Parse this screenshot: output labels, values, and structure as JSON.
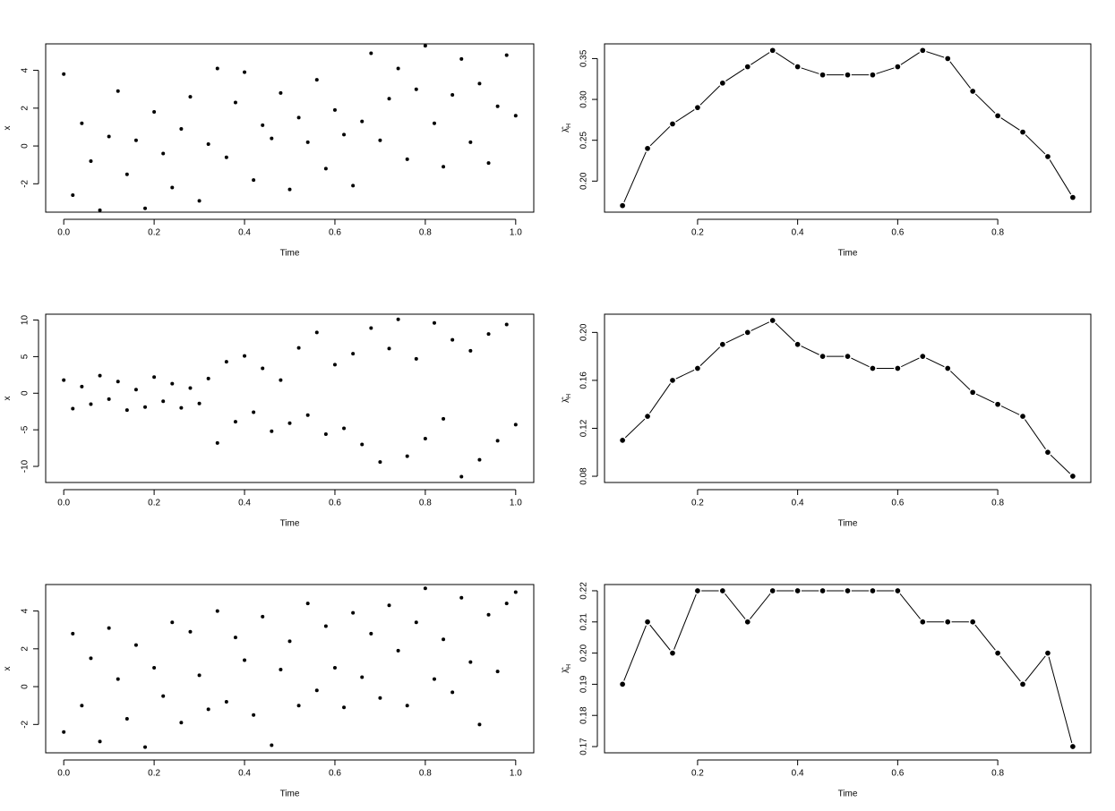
{
  "chart_data": [
    {
      "type": "scatter",
      "xlabel": "Time",
      "ylabel": "x",
      "color": "#000000",
      "x": [
        0.0,
        0.02,
        0.04,
        0.06,
        0.08,
        0.1,
        0.12,
        0.14,
        0.16,
        0.18,
        0.2,
        0.22,
        0.24,
        0.26,
        0.28,
        0.3,
        0.32,
        0.34,
        0.36,
        0.38,
        0.4,
        0.42,
        0.44,
        0.46,
        0.48,
        0.5,
        0.52,
        0.54,
        0.56,
        0.58,
        0.6,
        0.62,
        0.64,
        0.66,
        0.68,
        0.7,
        0.72,
        0.74,
        0.76,
        0.78,
        0.8,
        0.82,
        0.84,
        0.86,
        0.88,
        0.9,
        0.92,
        0.94,
        0.96,
        0.98,
        1.0
      ],
      "values": [
        3.8,
        -2.6,
        1.2,
        -0.8,
        -3.4,
        0.5,
        2.9,
        -1.5,
        0.3,
        -3.3,
        1.8,
        -0.4,
        -2.2,
        0.9,
        2.6,
        -2.9,
        0.1,
        4.1,
        -0.6,
        2.3,
        3.9,
        -1.8,
        1.1,
        0.4,
        2.8,
        -2.3,
        1.5,
        0.2,
        3.5,
        -1.2,
        1.9,
        0.6,
        -2.1,
        1.3,
        4.9,
        0.3,
        2.5,
        4.1,
        -0.7,
        3.0,
        5.3,
        1.2,
        -1.1,
        2.7,
        4.6,
        0.2,
        3.3,
        -0.9,
        2.1,
        4.8,
        1.6
      ],
      "xlim": [
        -0.04,
        1.04
      ],
      "ylim": [
        -3.5,
        5.4
      ],
      "xticks": [
        {
          "value": 0,
          "label": "0.0"
        },
        0.2,
        0.4,
        0.6,
        0.8,
        {
          "value": 1,
          "label": "1.0"
        }
      ],
      "yticks": [
        -2,
        0,
        2,
        4
      ]
    },
    {
      "type": "line",
      "xlabel": "Time",
      "ylabel": "λ̂",
      "ylabel_subscript": "H",
      "color": "#000000",
      "x": [
        0.05,
        0.1,
        0.15,
        0.2,
        0.25,
        0.3,
        0.35,
        0.4,
        0.45,
        0.5,
        0.55,
        0.6,
        0.65,
        0.7,
        0.75,
        0.8,
        0.85,
        0.9,
        0.95
      ],
      "values": [
        0.17,
        0.24,
        0.27,
        0.29,
        0.32,
        0.34,
        0.36,
        0.34,
        0.33,
        0.33,
        0.33,
        0.34,
        0.36,
        0.35,
        0.31,
        0.28,
        0.26,
        0.23,
        0.18
      ],
      "xlim": [
        0.014,
        0.986
      ],
      "ylim": [
        0.162,
        0.368
      ],
      "xticks": [
        0.2,
        0.4,
        0.6,
        0.8
      ],
      "yticks": [
        {
          "value": 0.2,
          "label": "0.20"
        },
        0.25,
        {
          "value": 0.3,
          "label": "0.30"
        },
        0.35
      ]
    },
    {
      "type": "scatter",
      "xlabel": "Time",
      "ylabel": "x",
      "color": "#000000",
      "x": [
        0.0,
        0.02,
        0.04,
        0.06,
        0.08,
        0.1,
        0.12,
        0.14,
        0.16,
        0.18,
        0.2,
        0.22,
        0.24,
        0.26,
        0.28,
        0.3,
        0.32,
        0.34,
        0.36,
        0.38,
        0.4,
        0.42,
        0.44,
        0.46,
        0.48,
        0.5,
        0.52,
        0.54,
        0.56,
        0.58,
        0.6,
        0.62,
        0.64,
        0.66,
        0.68,
        0.7,
        0.72,
        0.74,
        0.76,
        0.78,
        0.8,
        0.82,
        0.84,
        0.86,
        0.88,
        0.9,
        0.92,
        0.94,
        0.96,
        0.98,
        1.0
      ],
      "values": [
        1.8,
        -2.1,
        0.9,
        -1.5,
        2.4,
        -0.8,
        1.6,
        -2.3,
        0.5,
        -1.9,
        2.2,
        -1.1,
        1.3,
        -2.0,
        0.7,
        -1.4,
        2.0,
        -6.8,
        4.3,
        -3.9,
        5.1,
        -2.6,
        3.4,
        -5.2,
        1.8,
        -4.1,
        6.2,
        -3.0,
        8.3,
        -5.6,
        3.9,
        -4.8,
        5.4,
        -7.0,
        8.9,
        -9.4,
        6.1,
        10.1,
        -8.6,
        4.7,
        -6.2,
        9.6,
        -3.5,
        7.3,
        -11.4,
        5.8,
        -9.1,
        8.1,
        -6.5,
        9.4,
        -4.3
      ],
      "xlim": [
        -0.04,
        1.04
      ],
      "ylim": [
        -12.2,
        10.8
      ],
      "xticks": [
        {
          "value": 0,
          "label": "0.0"
        },
        0.2,
        0.4,
        0.6,
        0.8,
        {
          "value": 1,
          "label": "1.0"
        }
      ],
      "yticks": [
        -10,
        -5,
        0,
        5,
        10
      ]
    },
    {
      "type": "line",
      "xlabel": "Time",
      "ylabel": "λ̂",
      "ylabel_subscript": "H",
      "color": "#000000",
      "x": [
        0.05,
        0.1,
        0.15,
        0.2,
        0.25,
        0.3,
        0.35,
        0.4,
        0.45,
        0.5,
        0.55,
        0.6,
        0.65,
        0.7,
        0.75,
        0.8,
        0.85,
        0.9,
        0.95
      ],
      "values": [
        0.11,
        0.13,
        0.16,
        0.17,
        0.19,
        0.2,
        0.21,
        0.19,
        0.18,
        0.18,
        0.17,
        0.17,
        0.18,
        0.17,
        0.15,
        0.14,
        0.13,
        0.1,
        0.08
      ],
      "xlim": [
        0.014,
        0.986
      ],
      "ylim": [
        0.0748,
        0.2152
      ],
      "xticks": [
        0.2,
        0.4,
        0.6,
        0.8
      ],
      "yticks": [
        0.08,
        0.12,
        0.16,
        {
          "value": 0.2,
          "label": "0.20"
        }
      ]
    },
    {
      "type": "scatter",
      "xlabel": "Time",
      "ylabel": "x",
      "color": "#000000",
      "x": [
        0.0,
        0.02,
        0.04,
        0.06,
        0.08,
        0.1,
        0.12,
        0.14,
        0.16,
        0.18,
        0.2,
        0.22,
        0.24,
        0.26,
        0.28,
        0.3,
        0.32,
        0.34,
        0.36,
        0.38,
        0.4,
        0.42,
        0.44,
        0.46,
        0.48,
        0.5,
        0.52,
        0.54,
        0.56,
        0.58,
        0.6,
        0.62,
        0.64,
        0.66,
        0.68,
        0.7,
        0.72,
        0.74,
        0.76,
        0.78,
        0.8,
        0.82,
        0.84,
        0.86,
        0.88,
        0.9,
        0.92,
        0.94,
        0.96,
        0.98,
        1.0
      ],
      "values": [
        -2.4,
        2.8,
        -1.0,
        1.5,
        -2.9,
        3.1,
        0.4,
        -1.7,
        2.2,
        -3.2,
        1.0,
        -0.5,
        3.4,
        -1.9,
        2.9,
        0.6,
        -1.2,
        4.0,
        -0.8,
        2.6,
        1.4,
        -1.5,
        3.7,
        -3.1,
        0.9,
        2.4,
        -1.0,
        4.4,
        -0.2,
        3.2,
        1.0,
        -1.1,
        3.9,
        0.5,
        2.8,
        -0.6,
        4.3,
        1.9,
        -1.0,
        3.4,
        5.2,
        0.4,
        2.5,
        -0.3,
        4.7,
        1.3,
        -2.0,
        3.8,
        0.8,
        4.4,
        5.0
      ],
      "xlim": [
        -0.04,
        1.04
      ],
      "ylim": [
        -3.5,
        5.4
      ],
      "xticks": [
        {
          "value": 0,
          "label": "0.0"
        },
        0.2,
        0.4,
        0.6,
        0.8,
        {
          "value": 1,
          "label": "1.0"
        }
      ],
      "yticks": [
        -2,
        0,
        2,
        4
      ]
    },
    {
      "type": "line",
      "xlabel": "Time",
      "ylabel": "λ̂",
      "ylabel_subscript": "H",
      "color": "#000000",
      "x": [
        0.05,
        0.1,
        0.15,
        0.2,
        0.25,
        0.3,
        0.35,
        0.4,
        0.45,
        0.5,
        0.55,
        0.6,
        0.65,
        0.7,
        0.75,
        0.8,
        0.85,
        0.9,
        0.95
      ],
      "values": [
        0.19,
        0.21,
        0.2,
        0.22,
        0.22,
        0.21,
        0.22,
        0.22,
        0.22,
        0.22,
        0.22,
        0.22,
        0.21,
        0.21,
        0.21,
        0.2,
        0.19,
        0.2,
        0.17
      ],
      "xlim": [
        0.014,
        0.986
      ],
      "ylim": [
        0.168,
        0.222
      ],
      "xticks": [
        0.2,
        0.4,
        0.6,
        0.8
      ],
      "yticks": [
        0.17,
        0.18,
        0.19,
        {
          "value": 0.2,
          "label": "0.20"
        },
        0.21,
        0.22
      ]
    }
  ]
}
